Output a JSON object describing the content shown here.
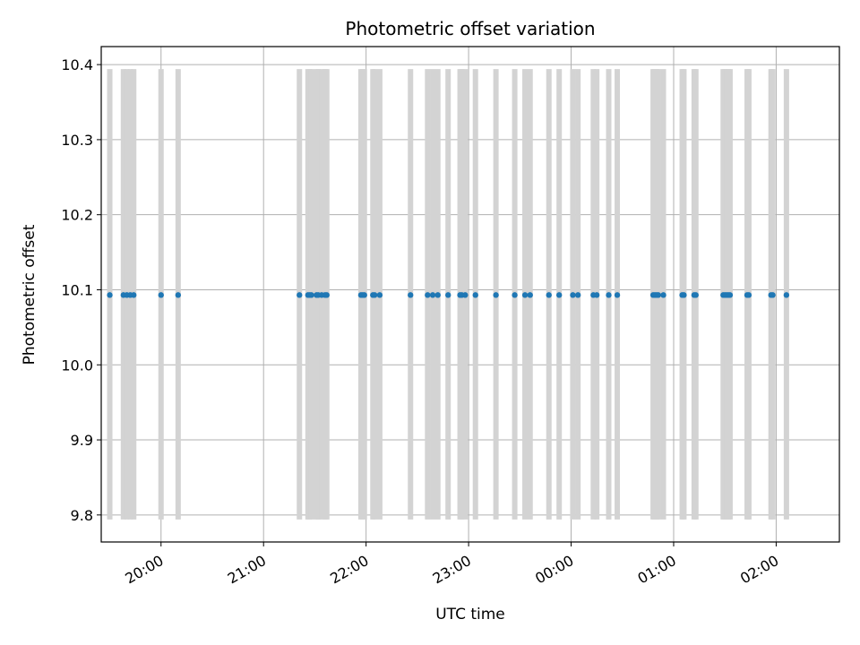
{
  "chart_data": {
    "type": "scatter",
    "title": "Photometric offset variation",
    "xlabel": "UTC time",
    "ylabel": "Photometric offset",
    "x_axis_kind": "time",
    "xlim": [
      "19:25",
      "02:37"
    ],
    "ylim": [
      9.764,
      10.424
    ],
    "x_ticks": [
      "20:00",
      "21:00",
      "22:00",
      "23:00",
      "00:00",
      "01:00",
      "02:00"
    ],
    "y_ticks": [
      "9.8",
      "9.9",
      "10.0",
      "10.1",
      "10.2",
      "10.3",
      "10.4"
    ],
    "grid": true,
    "point_color": "#1f77b4",
    "band_color": "#d3d3d3",
    "error_range": [
      9.794,
      10.394
    ],
    "series": [
      {
        "x": [
          "19:30",
          "19:38",
          "19:40",
          "19:42",
          "19:44",
          "20:00",
          "20:10",
          "21:21",
          "21:26",
          "21:27",
          "21:28",
          "21:31",
          "21:32",
          "21:34",
          "21:36",
          "21:37",
          "21:57",
          "21:58",
          "21:59",
          "22:04",
          "22:05",
          "22:08",
          "22:26",
          "22:36",
          "22:39",
          "22:42",
          "22:48",
          "22:55",
          "22:56",
          "22:58",
          "23:04",
          "23:16",
          "23:27",
          "23:33",
          "23:36",
          "23:47",
          "23:53",
          "00:01",
          "00:04",
          "00:13",
          "00:15",
          "00:22",
          "00:27",
          "00:48",
          "00:49",
          "00:50",
          "00:51",
          "00:54",
          "01:05",
          "01:06",
          "01:12",
          "01:13",
          "01:29",
          "01:30",
          "01:31",
          "01:32",
          "01:33",
          "01:43",
          "01:44",
          "01:57",
          "01:58",
          "02:06"
        ],
        "y": [
          10.093,
          10.093,
          10.093,
          10.093,
          10.093,
          10.093,
          10.093,
          10.093,
          10.093,
          10.093,
          10.093,
          10.093,
          10.093,
          10.093,
          10.093,
          10.093,
          10.093,
          10.093,
          10.093,
          10.093,
          10.093,
          10.093,
          10.093,
          10.093,
          10.093,
          10.093,
          10.093,
          10.093,
          10.093,
          10.093,
          10.093,
          10.093,
          10.093,
          10.093,
          10.093,
          10.093,
          10.093,
          10.093,
          10.093,
          10.093,
          10.093,
          10.093,
          10.093,
          10.093,
          10.093,
          10.093,
          10.093,
          10.093,
          10.093,
          10.093,
          10.093,
          10.093,
          10.093,
          10.093,
          10.093,
          10.093,
          10.093,
          10.093,
          10.093,
          10.093,
          10.093,
          10.093
        ]
      }
    ]
  }
}
